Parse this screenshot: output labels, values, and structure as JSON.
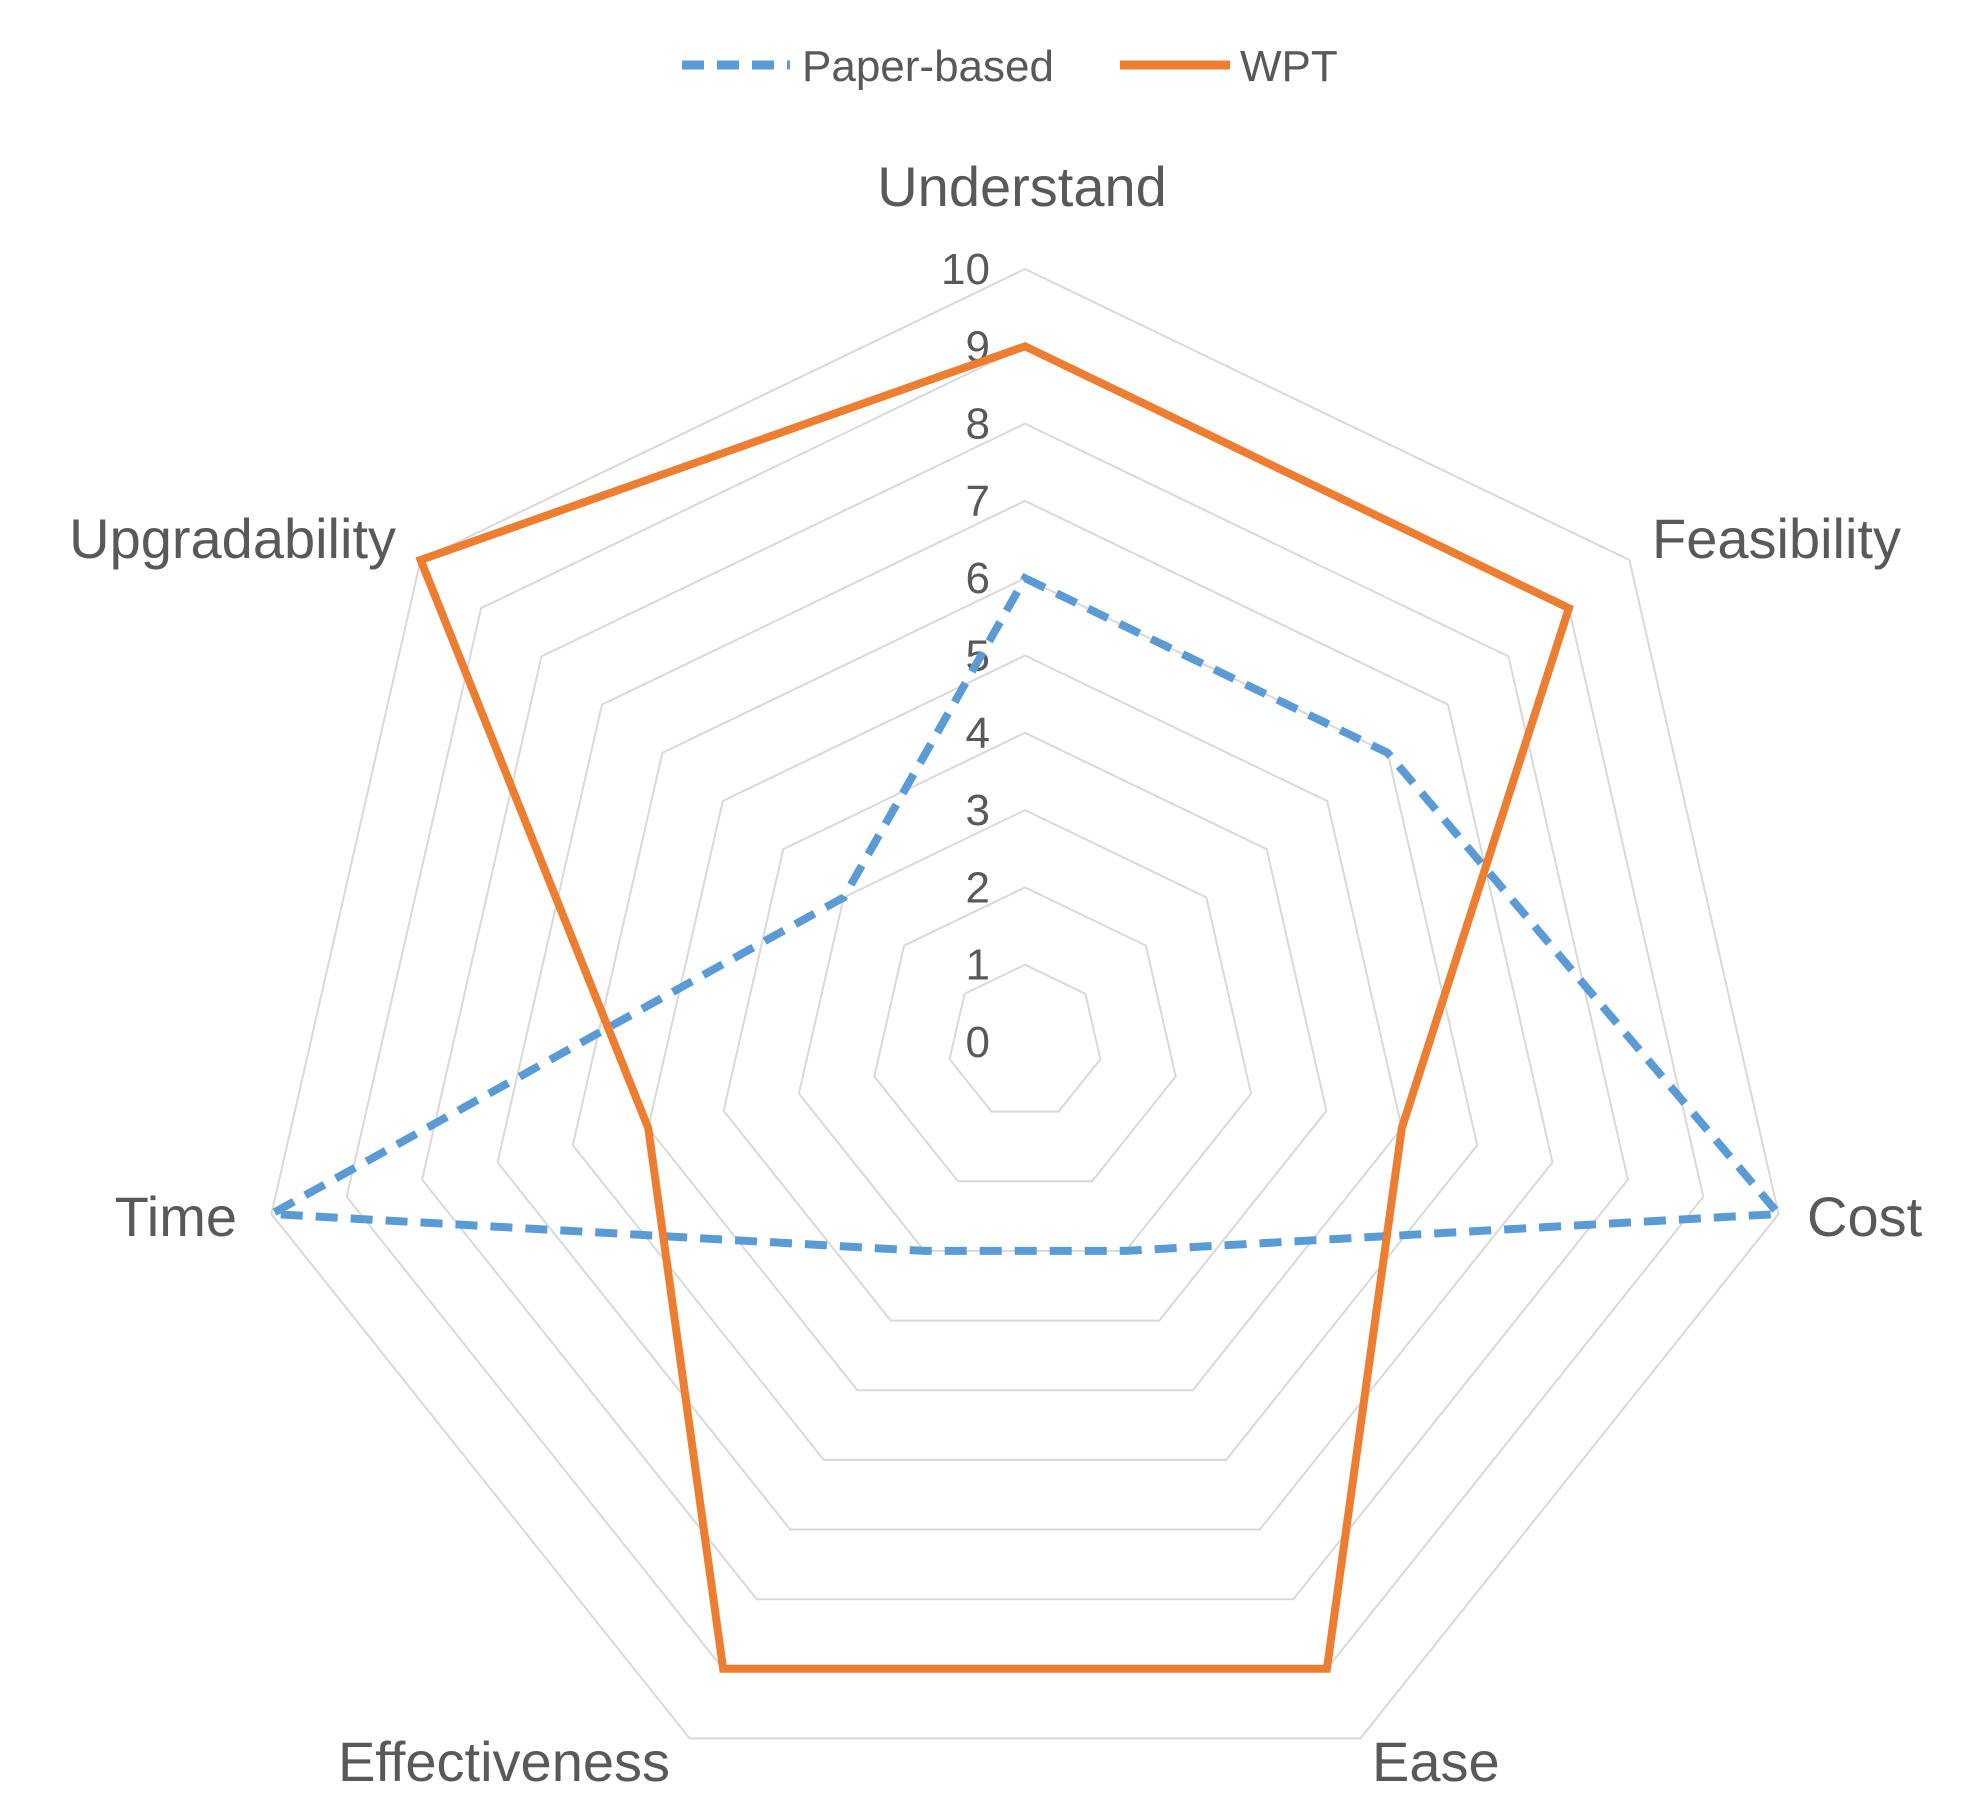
{
  "chart_data": {
    "type": "radar",
    "categories": [
      "Understand",
      "Feasibility",
      "Cost",
      "Ease",
      "Effectiveness",
      "Time",
      "Upgradability"
    ],
    "r_ticks": [
      0,
      1,
      2,
      3,
      4,
      5,
      6,
      7,
      8,
      9,
      10
    ],
    "rlim": [
      0,
      10
    ],
    "grid": true,
    "legend_position": "top",
    "series": [
      {
        "name": "Paper-based",
        "values": [
          6,
          6,
          10,
          3,
          3,
          10,
          3
        ],
        "color": "#5B9BD5",
        "style": "dashed"
      },
      {
        "name": "WPT",
        "values": [
          9,
          9,
          5,
          9,
          9,
          5,
          10
        ],
        "color": "#ED7D31",
        "style": "solid"
      }
    ]
  }
}
